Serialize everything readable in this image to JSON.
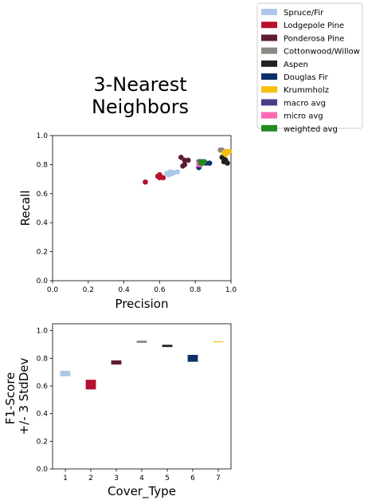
{
  "title_lines": [
    "3-Nearest",
    "Neighbors"
  ],
  "legend": {
    "placement": "top-right (outside plots)",
    "entries": [
      {
        "label": "Spruce/Fir",
        "color": "#aec7e8"
      },
      {
        "label": "Lodgepole Pine",
        "color": "#b5112e"
      },
      {
        "label": "Ponderosa Pine",
        "color": "#5c1c34"
      },
      {
        "label": "Cottonwood/Willow",
        "color": "#8c8985"
      },
      {
        "label": "Aspen",
        "color": "#1f221f"
      },
      {
        "label": "Douglas Fir",
        "color": "#0d3068"
      },
      {
        "label": "Krummholz",
        "color": "#f7c00c"
      },
      {
        "label": "macro avg",
        "color": "#483d8b"
      },
      {
        "label": "micro avg",
        "color": "#ff69b4"
      },
      {
        "label": "weighted avg",
        "color": "#228b22"
      }
    ]
  },
  "chart_data": [
    {
      "type": "scatter",
      "xlabel": "Precision",
      "ylabel": "Recall",
      "xlim": [
        0,
        1
      ],
      "ylim": [
        0,
        1
      ],
      "xticks": [
        "0.0",
        "0.2",
        "0.4",
        "0.6",
        "0.8",
        "1.0"
      ],
      "yticks": [
        "0.0",
        "0.2",
        "0.4",
        "0.6",
        "0.8",
        "1.0"
      ],
      "grid": false,
      "series": [
        {
          "name": "Spruce/Fir",
          "color": "#aec7e8",
          "points": [
            [
              0.64,
              0.74
            ],
            [
              0.65,
              0.73
            ],
            [
              0.66,
              0.75
            ],
            [
              0.67,
              0.74
            ],
            [
              0.68,
              0.745
            ],
            [
              0.7,
              0.75
            ],
            [
              0.66,
              0.735
            ]
          ]
        },
        {
          "name": "Lodgepole Pine",
          "color": "#b5112e",
          "points": [
            [
              0.52,
              0.68
            ],
            [
              0.59,
              0.72
            ],
            [
              0.6,
              0.73
            ],
            [
              0.62,
              0.71
            ],
            [
              0.6,
              0.71
            ]
          ]
        },
        {
          "name": "Ponderosa Pine",
          "color": "#5c1c34",
          "points": [
            [
              0.72,
              0.85
            ],
            [
              0.74,
              0.8
            ],
            [
              0.74,
              0.83
            ],
            [
              0.76,
              0.83
            ],
            [
              0.73,
              0.79
            ]
          ]
        },
        {
          "name": "Cottonwood/Willow",
          "color": "#8c8985",
          "points": [
            [
              0.94,
              0.9
            ],
            [
              0.96,
              0.89
            ],
            [
              0.97,
              0.88
            ],
            [
              0.98,
              0.89
            ],
            [
              0.95,
              0.9
            ]
          ]
        },
        {
          "name": "Aspen",
          "color": "#1f221f",
          "points": [
            [
              0.95,
              0.85
            ],
            [
              0.96,
              0.82
            ],
            [
              0.97,
              0.83
            ],
            [
              0.98,
              0.81
            ],
            [
              0.96,
              0.84
            ]
          ]
        },
        {
          "name": "Douglas Fir",
          "color": "#0d3068",
          "points": [
            [
              0.82,
              0.78
            ],
            [
              0.84,
              0.81
            ],
            [
              0.86,
              0.81
            ],
            [
              0.88,
              0.81
            ],
            [
              0.83,
              0.8
            ]
          ]
        },
        {
          "name": "Krummholz",
          "color": "#f7c00c",
          "points": [
            [
              0.96,
              0.88
            ],
            [
              0.97,
              0.89
            ],
            [
              0.98,
              0.88
            ],
            [
              0.97,
              0.87
            ],
            [
              0.99,
              0.89
            ]
          ]
        },
        {
          "name": "macro avg",
          "color": "#483d8b",
          "points": [
            [
              0.82,
              0.82
            ],
            [
              0.83,
              0.81
            ],
            [
              0.84,
              0.82
            ],
            [
              0.85,
              0.82
            ],
            [
              0.83,
              0.82
            ]
          ]
        },
        {
          "name": "micro avg",
          "color": "#ff69b4",
          "points": [
            [
              0.82,
              0.8
            ],
            [
              0.83,
              0.81
            ],
            [
              0.84,
              0.81
            ],
            [
              0.82,
              0.81
            ],
            [
              0.83,
              0.8
            ]
          ]
        },
        {
          "name": "weighted avg",
          "color": "#228b22",
          "points": [
            [
              0.83,
              0.82
            ],
            [
              0.84,
              0.81
            ],
            [
              0.85,
              0.82
            ],
            [
              0.84,
              0.82
            ],
            [
              0.83,
              0.81
            ]
          ]
        }
      ]
    },
    {
      "type": "bar",
      "xlabel": "Cover_Type",
      "ylabel": "F1-Score\n+/- 3 StdDev",
      "xlim": [
        0.5,
        7.5
      ],
      "ylim": [
        0,
        1.05
      ],
      "xticks": [
        "1",
        "2",
        "3",
        "4",
        "5",
        "6",
        "7"
      ],
      "yticks": [
        "0.0",
        "0.2",
        "0.4",
        "0.6",
        "0.8",
        "1.0"
      ],
      "grid": false,
      "bars": [
        {
          "category": 1,
          "color": "#aec7e8",
          "mean": 0.69,
          "half_range": 0.02
        },
        {
          "category": 2,
          "color": "#b5112e",
          "mean": 0.61,
          "half_range": 0.035
        },
        {
          "category": 3,
          "color": "#5c1c34",
          "mean": 0.77,
          "half_range": 0.015
        },
        {
          "category": 4,
          "color": "#8c8985",
          "mean": 0.92,
          "half_range": 0.008
        },
        {
          "category": 5,
          "color": "#1f221f",
          "mean": 0.89,
          "half_range": 0.008
        },
        {
          "category": 6,
          "color": "#0d3068",
          "mean": 0.8,
          "half_range": 0.025
        },
        {
          "category": 7,
          "color": "#f7c00c",
          "mean": 0.92,
          "half_range": 0.003
        }
      ]
    }
  ]
}
